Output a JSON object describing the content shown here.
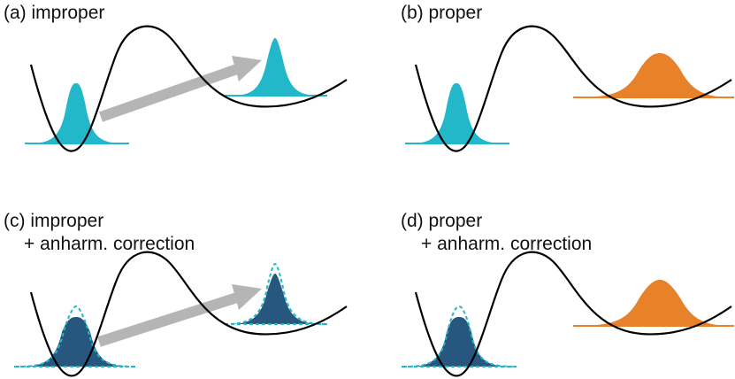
{
  "panels": [
    {
      "id": "a",
      "title": "(a) improper",
      "subtitle": ""
    },
    {
      "id": "b",
      "title": "(b) proper",
      "subtitle": ""
    },
    {
      "id": "c",
      "title": "(c) improper",
      "subtitle": "+ anharm. correction"
    },
    {
      "id": "d",
      "title": "(d) proper",
      "subtitle": "+ anharm. correction"
    }
  ],
  "colors": {
    "teal": "#22b8c9",
    "orange": "#e8822a",
    "navy": "#27567f",
    "arrow": "#b5b5b5",
    "curve": "#000000"
  }
}
